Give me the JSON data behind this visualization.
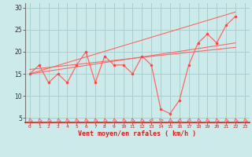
{
  "xlabel": "Vent moyen/en rafales ( km/h )",
  "bg_color": "#cceaea",
  "grid_color": "#aacece",
  "line_color": "#ff6666",
  "marker_color": "#ff4444",
  "xlim": [
    -0.5,
    23.5
  ],
  "ylim": [
    4,
    31
  ],
  "yticks": [
    5,
    10,
    15,
    20,
    25,
    30
  ],
  "xticks": [
    0,
    1,
    2,
    3,
    4,
    5,
    6,
    7,
    8,
    9,
    10,
    11,
    12,
    13,
    14,
    15,
    16,
    17,
    18,
    19,
    20,
    21,
    22,
    23
  ],
  "line1_x": [
    0,
    1,
    2,
    3,
    4,
    5,
    6,
    7,
    8,
    9,
    10,
    11,
    12,
    13,
    14,
    15,
    16,
    17,
    18,
    19,
    20,
    21,
    22
  ],
  "line1_y": [
    15,
    17,
    13,
    15,
    13,
    17,
    20,
    13,
    19,
    17,
    17,
    15,
    19,
    17,
    7,
    6,
    9,
    17,
    22,
    24,
    22,
    26,
    28
  ],
  "line2_x": [
    0,
    22
  ],
  "line2_y": [
    15,
    29
  ],
  "line3_x": [
    0,
    22
  ],
  "line3_y": [
    15,
    22
  ],
  "line4_x": [
    0,
    22
  ],
  "line4_y": [
    16,
    21
  ]
}
